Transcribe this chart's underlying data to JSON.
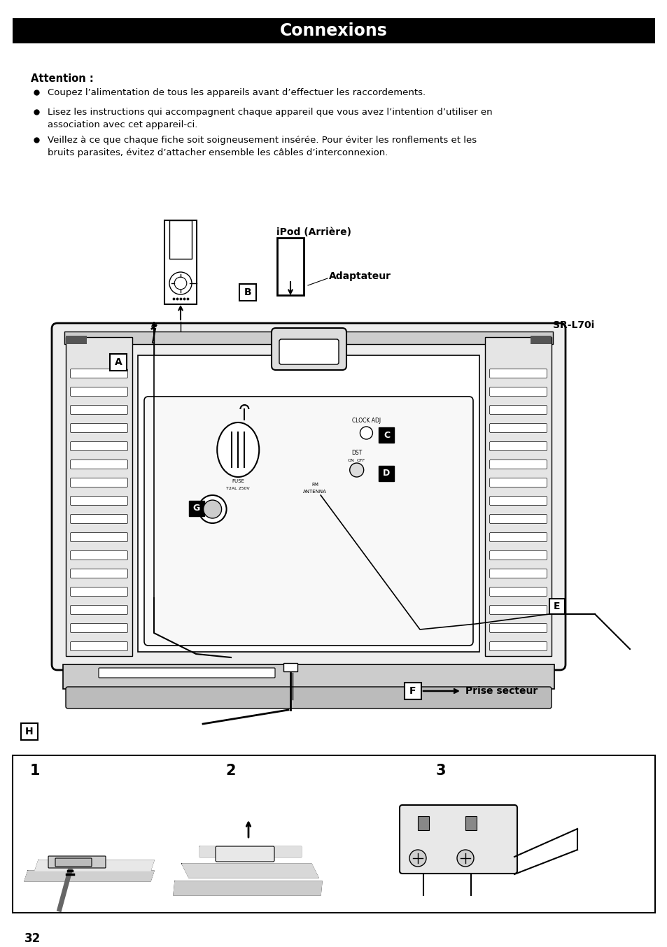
{
  "title": "Connexions",
  "title_bg": "#000000",
  "title_color": "#ffffff",
  "page_bg": "#ffffff",
  "page_number": "32",
  "attention_header": "Attention :",
  "bullet1": "Coupez l’alimentation de tous les appareils avant d’effectuer les raccordements.",
  "bullet2_line1": "Lisez les instructions qui accompagnent chaque appareil que vous avez l’intention d’utiliser en",
  "bullet2_line2": "association avec cet appareil-ci.",
  "bullet3_line1": "Veillez à ce que chaque fiche soit soigneusement insérée. Pour éviter les ronflements et les",
  "bullet3_line2": "bruits parasites, évitez d’attacher ensemble les câbles d’interconnexion.",
  "label_ipod": "iPod (Arrière)",
  "label_adaptateur": "Adaptateur",
  "label_sr": "SR-L70i",
  "label_prise": "Prise secteur",
  "text_clock": "CLOCK ADJ",
  "text_dst": "DST",
  "text_on": "ON",
  "text_off": "OFF",
  "text_fuse1": "FUSE",
  "text_fuse2": "T2AL 250V",
  "text_fm1": "FM",
  "text_fm2": "ANTENNA"
}
